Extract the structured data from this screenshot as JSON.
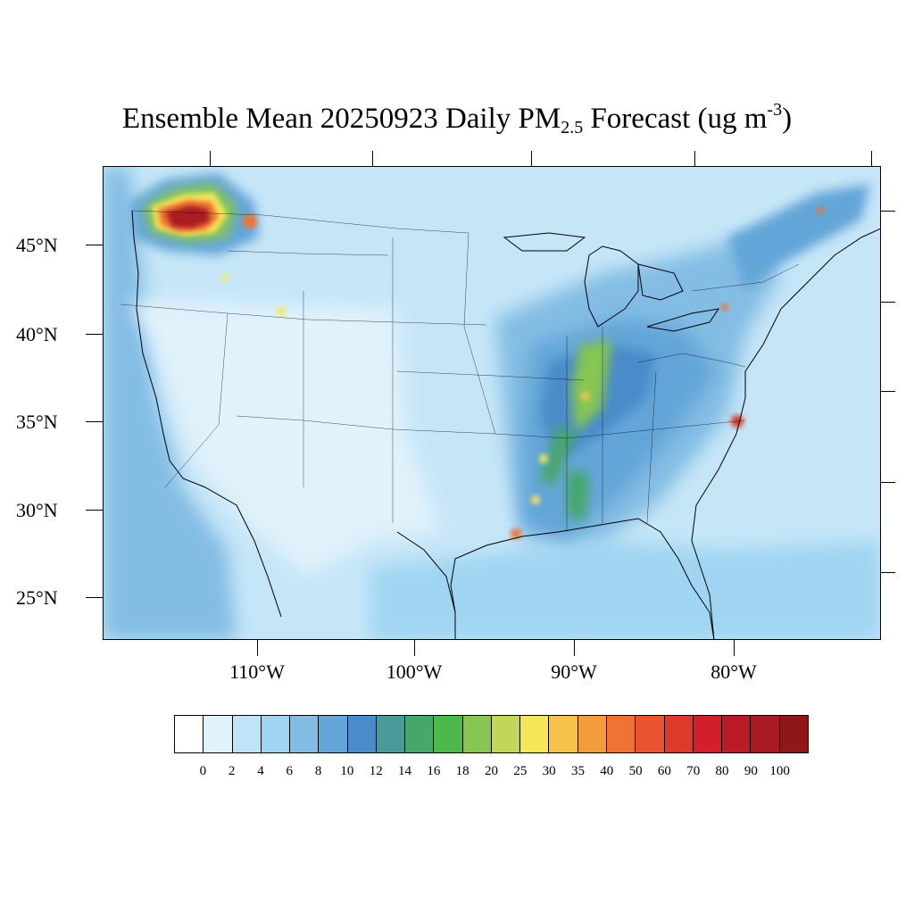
{
  "title": {
    "prefix": "Ensemble Mean 20250923 Daily PM",
    "subscript": "2.5",
    "middle": " Forecast (ug m",
    "superscript": "-3",
    "suffix": ")"
  },
  "axes": {
    "lat_labels": [
      "45°N",
      "40°N",
      "35°N",
      "30°N",
      "25°N"
    ],
    "lon_labels": [
      "110°W",
      "100°W",
      "90°W",
      "80°W"
    ]
  },
  "colorbar": {
    "labels": [
      "0",
      "2",
      "4",
      "6",
      "8",
      "10",
      "12",
      "14",
      "16",
      "18",
      "20",
      "25",
      "30",
      "35",
      "40",
      "50",
      "60",
      "70",
      "80",
      "90",
      "100"
    ],
    "colors": [
      "#ffffff",
      "#e0f2fb",
      "#bfe4f7",
      "#9fd5f2",
      "#83bde4",
      "#64a5d8",
      "#4a8cc9",
      "#4a9a9a",
      "#46a76c",
      "#4eb84a",
      "#86c651",
      "#c2d759",
      "#f6e558",
      "#f6c24c",
      "#f39c3e",
      "#ef7433",
      "#e85430",
      "#dd3a2c",
      "#d21f2a",
      "#b91c25",
      "#a81b22",
      "#8f1718"
    ]
  },
  "map": {
    "background_color": "#c6e6f8",
    "plume_colors": {
      "low": "#83bde4",
      "moderate": "#4a8cc9",
      "green": "#46a76c",
      "yellow": "#f6e558",
      "orange": "#f39c3e",
      "red": "#dd3a2c",
      "darkred": "#a81b22"
    }
  }
}
